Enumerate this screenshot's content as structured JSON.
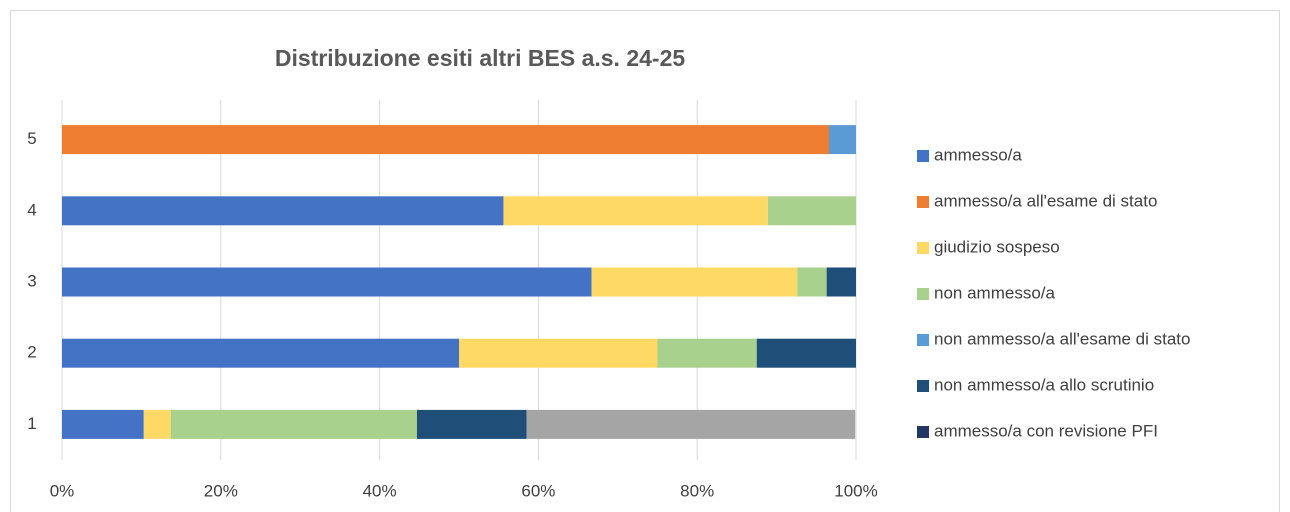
{
  "chart_data": {
    "type": "stacked_barh",
    "title": "Distribuzione esiti altri BES a.s. 24-25",
    "categories": [
      "1",
      "2",
      "3",
      "4",
      "5"
    ],
    "series": [
      {
        "name": "ammesso/a",
        "color": "#4472c4",
        "values": [
          10.3,
          50,
          66.7,
          55.6,
          0
        ]
      },
      {
        "name": "ammesso/a all'esame di stato",
        "color": "#ed7d31",
        "values": [
          0,
          0,
          0,
          0,
          96.6
        ]
      },
      {
        "name": "giudizio sospeso",
        "color": "#ffd966",
        "values": [
          3.4,
          25,
          25.9,
          33.3,
          0
        ]
      },
      {
        "name": "non ammesso/a",
        "color": "#a9d18e",
        "values": [
          31,
          12.5,
          3.7,
          11.1,
          0
        ]
      },
      {
        "name": "non ammesso/a all'esame di stato",
        "color": "#5b9bd5",
        "values": [
          0,
          0,
          0,
          0,
          3.4
        ]
      },
      {
        "name": "non ammesso/a allo scrutinio",
        "color": "#1f4e79",
        "values": [
          13.8,
          12.5,
          3.7,
          0,
          0
        ]
      },
      {
        "name": "ammesso/a con revisione PFI",
        "color": "#203864",
        "values": [
          0,
          0,
          0,
          0,
          0
        ]
      },
      {
        "color": "#a5a5a5",
        "values": [
          41.4,
          0,
          0,
          0,
          0
        ]
      }
    ],
    "xlim": [
      0,
      100
    ],
    "xticks": [
      {
        "value": 0,
        "label": "0%"
      },
      {
        "value": 20,
        "label": "20%"
      },
      {
        "value": 40,
        "label": "40%"
      },
      {
        "value": 60,
        "label": "60%"
      },
      {
        "value": 80,
        "label": "80%"
      },
      {
        "value": 100,
        "label": "100%"
      }
    ],
    "grid": true,
    "legend": "right"
  }
}
